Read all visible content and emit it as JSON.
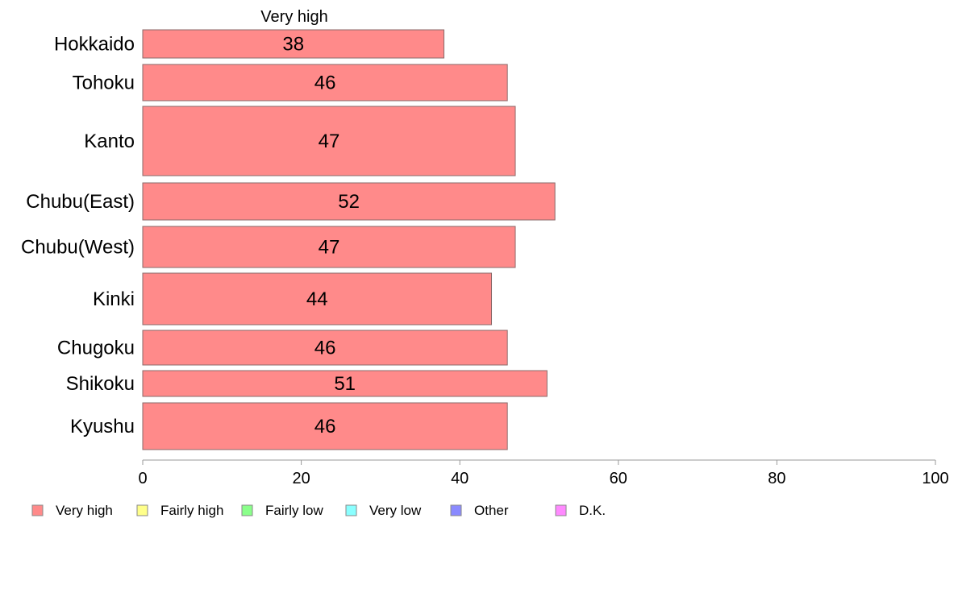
{
  "chart_data": {
    "type": "bar",
    "orientation": "horizontal",
    "series_title": "Very high",
    "categories": [
      "Hokkaido",
      "Tohoku",
      "Kanto",
      "Chubu(East)",
      "Chubu(West)",
      "Kinki",
      "Chugoku",
      "Shikoku",
      "Kyushu"
    ],
    "series": [
      {
        "name": "Very high",
        "values": [
          38,
          46,
          47,
          52,
          47,
          44,
          46,
          51,
          46
        ]
      }
    ],
    "data_labels": [
      "38",
      "46",
      "47",
      "52",
      "47",
      "44",
      "46",
      "51",
      "46"
    ],
    "xlim": [
      0,
      100
    ],
    "xticks": [
      0,
      20,
      40,
      60,
      80,
      100
    ],
    "grid": false,
    "legend_position": "bottom",
    "legend": [
      {
        "label": "Very high",
        "color": "#ff8a8a"
      },
      {
        "label": "Fairly high",
        "color": "#ffff8a"
      },
      {
        "label": "Fairly low",
        "color": "#8aff8a"
      },
      {
        "label": "Very low",
        "color": "#8affff"
      },
      {
        "label": "Other",
        "color": "#8a8aff"
      },
      {
        "label": "D.K.",
        "color": "#ff8aff"
      }
    ],
    "bar_color": "#ff8a8a",
    "bar_stroke": "#8a6a6a",
    "axis_color": "#9a9a9a"
  }
}
